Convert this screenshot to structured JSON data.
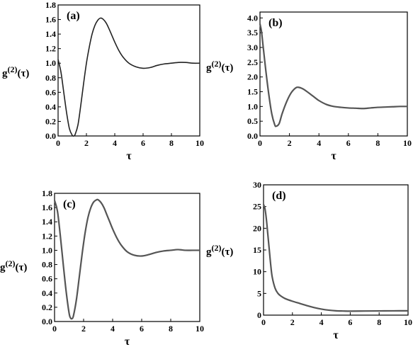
{
  "chart_data": [
    {
      "type": "line",
      "panel_label": "(a)",
      "xlabel": "τ",
      "ylabel": {
        "base": "g",
        "sup": "(2)",
        "arg": "(τ)"
      },
      "xlim": [
        0,
        10
      ],
      "ylim": [
        0,
        1.8
      ],
      "xticks": [
        0,
        2,
        4,
        6,
        8,
        10
      ],
      "xtick_labels": [
        "0",
        "2",
        "4",
        "6",
        "8",
        "10"
      ],
      "yticks": [
        0,
        0.2,
        0.4,
        0.6,
        0.8,
        1.0,
        1.2,
        1.4,
        1.6,
        1.8
      ],
      "ytick_labels": [
        "0.0",
        "0.2",
        "0.4",
        "0.6",
        "0.8",
        "1.0",
        "1.2",
        "1.4",
        "1.6",
        "1.8"
      ],
      "series": [
        {
          "x": [
            0,
            0.2,
            0.4,
            0.6,
            0.8,
            1.0,
            1.1,
            1.2,
            1.4,
            1.6,
            1.8,
            2.0,
            2.2,
            2.4,
            2.6,
            2.8,
            3.0,
            3.2,
            3.4,
            3.6,
            3.8,
            4.0,
            4.3,
            4.6,
            5.0,
            5.5,
            6.0,
            6.5,
            7.0,
            7.5,
            8.0,
            8.5,
            9.0,
            9.5,
            10
          ],
          "y": [
            1.05,
            0.88,
            0.6,
            0.32,
            0.1,
            0.01,
            0.0,
            0.02,
            0.15,
            0.42,
            0.72,
            1.0,
            1.22,
            1.4,
            1.52,
            1.59,
            1.62,
            1.6,
            1.55,
            1.47,
            1.38,
            1.29,
            1.17,
            1.08,
            1.0,
            0.95,
            0.93,
            0.94,
            0.97,
            0.99,
            1.0,
            1.01,
            1.01,
            1.0,
            1.0
          ]
        }
      ]
    },
    {
      "type": "line",
      "panel_label": "(b)",
      "xlabel": "τ",
      "ylabel": {
        "base": "g",
        "sup": "(2)",
        "arg": "(τ)"
      },
      "xlim": [
        0,
        10
      ],
      "ylim": [
        0,
        4.2
      ],
      "xticks": [
        0,
        2,
        4,
        6,
        8,
        10
      ],
      "xtick_labels": [
        "0",
        "2",
        "4",
        "6",
        "8",
        "10"
      ],
      "yticks": [
        0,
        0.5,
        1.0,
        1.5,
        2.0,
        2.5,
        3.0,
        3.5,
        4.0
      ],
      "ytick_labels": [
        "0.0",
        "0.5",
        "1.0",
        "1.5",
        "2.0",
        "2.5",
        "3.0",
        "3.5",
        "4.0"
      ],
      "series": [
        {
          "x": [
            0,
            0.1,
            0.2,
            0.4,
            0.6,
            0.8,
            1.0,
            1.1,
            1.3,
            1.5,
            1.8,
            2.1,
            2.4,
            2.6,
            2.9,
            3.2,
            3.6,
            4.0,
            4.5,
            5.0,
            5.5,
            6.0,
            6.5,
            7.0,
            7.5,
            8.0,
            8.5,
            9.0,
            9.5,
            10
          ],
          "y": [
            3.8,
            3.55,
            3.1,
            2.2,
            1.4,
            0.75,
            0.38,
            0.33,
            0.42,
            0.75,
            1.15,
            1.45,
            1.62,
            1.65,
            1.6,
            1.5,
            1.35,
            1.2,
            1.07,
            1.0,
            0.97,
            0.95,
            0.94,
            0.93,
            0.95,
            0.97,
            0.98,
            0.99,
            1.0,
            1.0
          ]
        }
      ]
    },
    {
      "type": "line",
      "panel_label": "(c)",
      "xlabel": "τ",
      "ylabel": {
        "base": "g",
        "sup": "(2)",
        "arg": "(τ)"
      },
      "xlim": [
        0,
        10
      ],
      "ylim": [
        0,
        1.8
      ],
      "xticks": [
        0,
        2,
        4,
        6,
        8,
        10
      ],
      "xtick_labels": [
        "0",
        "2",
        "4",
        "6",
        "8",
        "10"
      ],
      "yticks": [
        0,
        0.2,
        0.4,
        0.6,
        0.8,
        1.0,
        1.2,
        1.4,
        1.6,
        1.8
      ],
      "ytick_labels": [
        "0.0",
        "0.2",
        "0.4",
        "0.6",
        "0.8",
        "1.0",
        "1.2",
        "1.4",
        "1.6",
        "1.8"
      ],
      "series": [
        {
          "x": [
            0,
            0.2,
            0.4,
            0.6,
            0.8,
            1.0,
            1.1,
            1.2,
            1.3,
            1.5,
            1.7,
            1.9,
            2.1,
            2.3,
            2.5,
            2.7,
            2.9,
            3.0,
            3.2,
            3.4,
            3.6,
            3.8,
            4.0,
            4.3,
            4.6,
            5.0,
            5.5,
            6.0,
            6.5,
            7.0,
            7.5,
            8.0,
            8.5,
            9.0,
            9.5,
            10
          ],
          "y": [
            1.7,
            1.55,
            1.2,
            0.8,
            0.42,
            0.12,
            0.05,
            0.04,
            0.08,
            0.3,
            0.62,
            0.95,
            1.24,
            1.46,
            1.6,
            1.68,
            1.71,
            1.71,
            1.67,
            1.6,
            1.5,
            1.4,
            1.3,
            1.17,
            1.07,
            0.98,
            0.93,
            0.92,
            0.94,
            0.97,
            0.99,
            1.0,
            1.01,
            1.0,
            1.0,
            1.0
          ]
        }
      ]
    },
    {
      "type": "line",
      "panel_label": "(d)",
      "xlabel": "τ",
      "ylabel": {
        "base": "g",
        "sup": "(2)",
        "arg": "(τ)"
      },
      "xlim": [
        0,
        10
      ],
      "ylim": [
        0,
        30
      ],
      "xticks": [
        0,
        2,
        4,
        6,
        8,
        10
      ],
      "xtick_labels": [
        "0",
        "2",
        "4",
        "6",
        "8",
        "10"
      ],
      "yticks": [
        0,
        5,
        10,
        15,
        20,
        25,
        30
      ],
      "ytick_labels": [
        "0",
        "5",
        "10",
        "15",
        "20",
        "25",
        "30"
      ],
      "series": [
        {
          "x": [
            0,
            0.1,
            0.2,
            0.3,
            0.4,
            0.5,
            0.6,
            0.8,
            1.0,
            1.2,
            1.5,
            2.0,
            2.5,
            3.0,
            3.5,
            4.0,
            4.5,
            5.0,
            5.5,
            6.0,
            7.0,
            8.0,
            9.0,
            10
          ],
          "y": [
            25.5,
            24.5,
            22,
            18.5,
            15,
            11.5,
            8.8,
            6.2,
            5.0,
            4.4,
            3.8,
            3.2,
            2.7,
            2.2,
            1.75,
            1.4,
            1.15,
            1.0,
            0.95,
            0.92,
            0.95,
            0.97,
            0.99,
            1.0
          ]
        }
      ]
    }
  ]
}
